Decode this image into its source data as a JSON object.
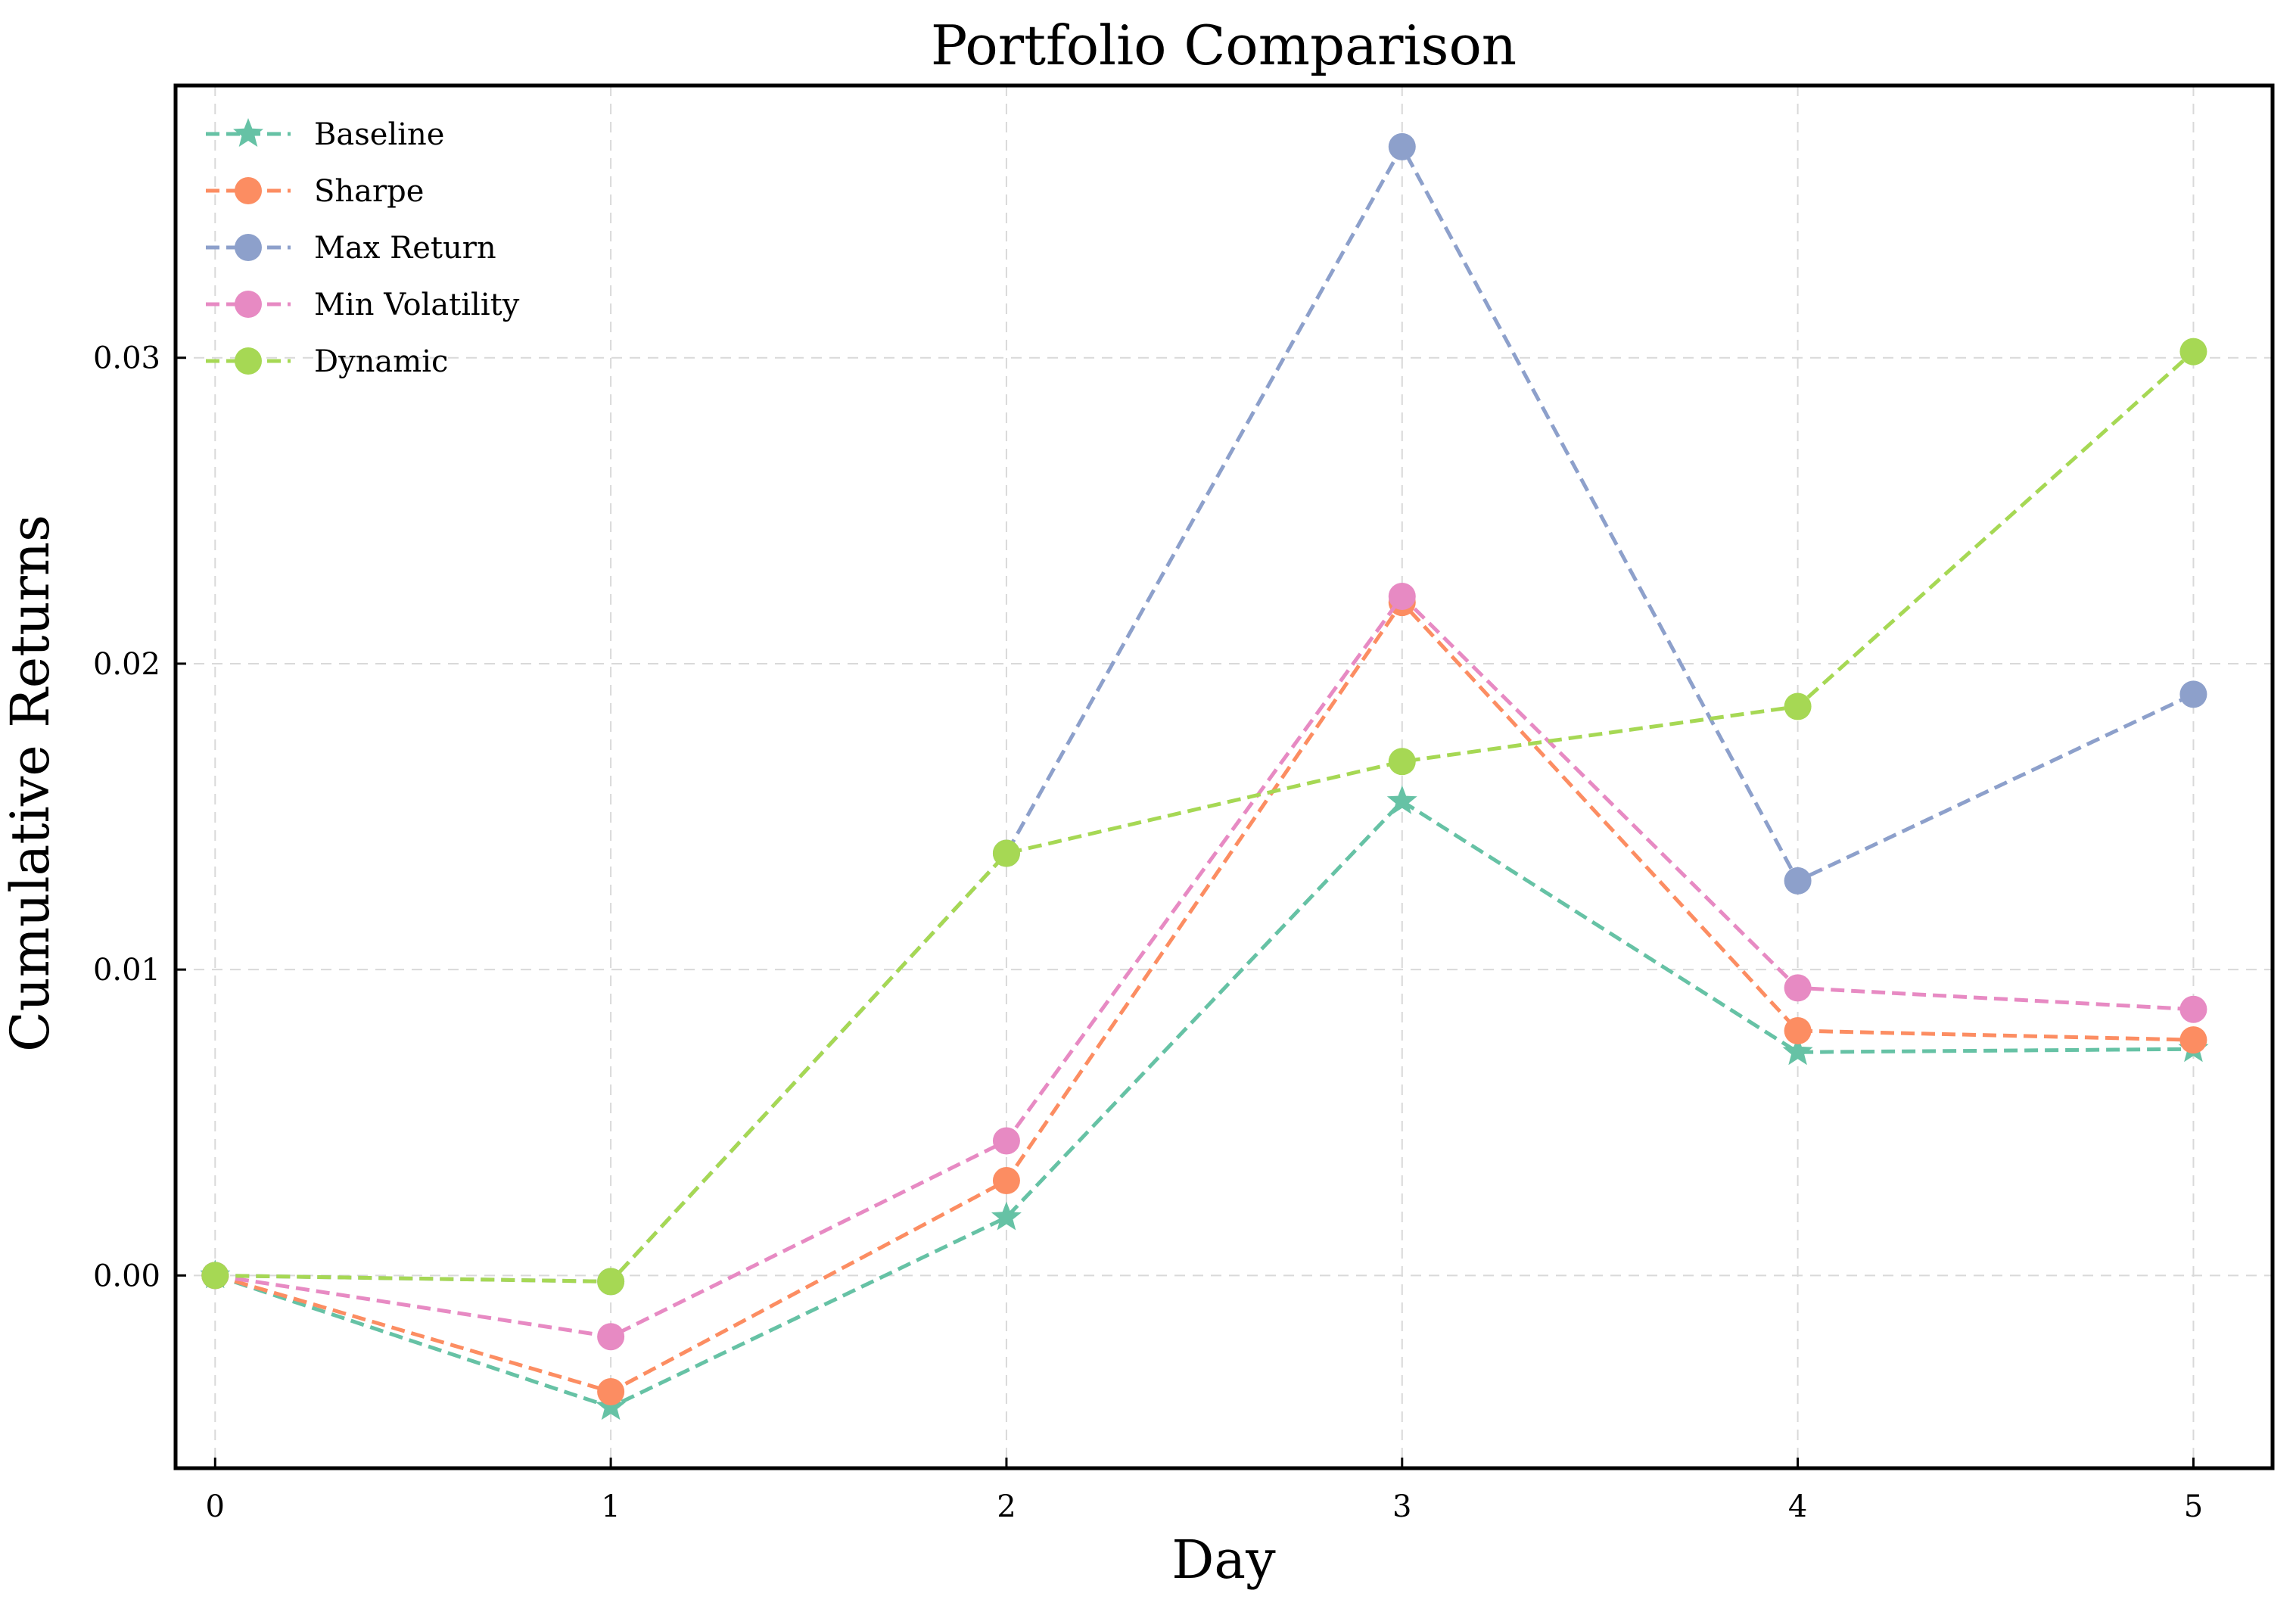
{
  "chart_data": {
    "type": "line",
    "title": "Portfolio Comparison",
    "xlabel": "Day",
    "ylabel": "Cumulative Returns",
    "x": [
      0,
      1,
      2,
      3,
      4,
      5
    ],
    "xlim": [
      -0.1,
      5.2
    ],
    "ylim": [
      -0.0063,
      0.0389
    ],
    "xticks": [
      "0",
      "1",
      "2",
      "3",
      "4",
      "5"
    ],
    "yticks": [
      {
        "value": 0.0,
        "label": "0.00"
      },
      {
        "value": 0.01,
        "label": "0.01"
      },
      {
        "value": 0.02,
        "label": "0.02"
      },
      {
        "value": 0.03,
        "label": "0.03"
      }
    ],
    "grid": true,
    "legend_position": "top-left",
    "series": [
      {
        "name": "Baseline",
        "color": "#66c2a5",
        "marker": "star",
        "values": [
          0.0,
          -0.0043,
          0.0019,
          0.0155,
          0.0073,
          0.0074
        ]
      },
      {
        "name": "Sharpe",
        "color": "#fc8d62",
        "marker": "circle",
        "values": [
          0.0,
          -0.0038,
          0.0031,
          0.022,
          0.008,
          0.0077
        ]
      },
      {
        "name": "Max Return",
        "color": "#8da0cb",
        "marker": "circle",
        "values": [
          0.0,
          -0.0002,
          0.0138,
          0.0369,
          0.0129,
          0.019
        ]
      },
      {
        "name": "Min Volatility",
        "color": "#e78ac3",
        "marker": "circle",
        "values": [
          0.0,
          -0.002,
          0.0044,
          0.0222,
          0.0094,
          0.0087
        ]
      },
      {
        "name": "Dynamic",
        "color": "#a6d854",
        "marker": "circle",
        "values": [
          0.0,
          -0.0002,
          0.0138,
          0.0168,
          0.0186,
          0.0302
        ]
      }
    ]
  }
}
